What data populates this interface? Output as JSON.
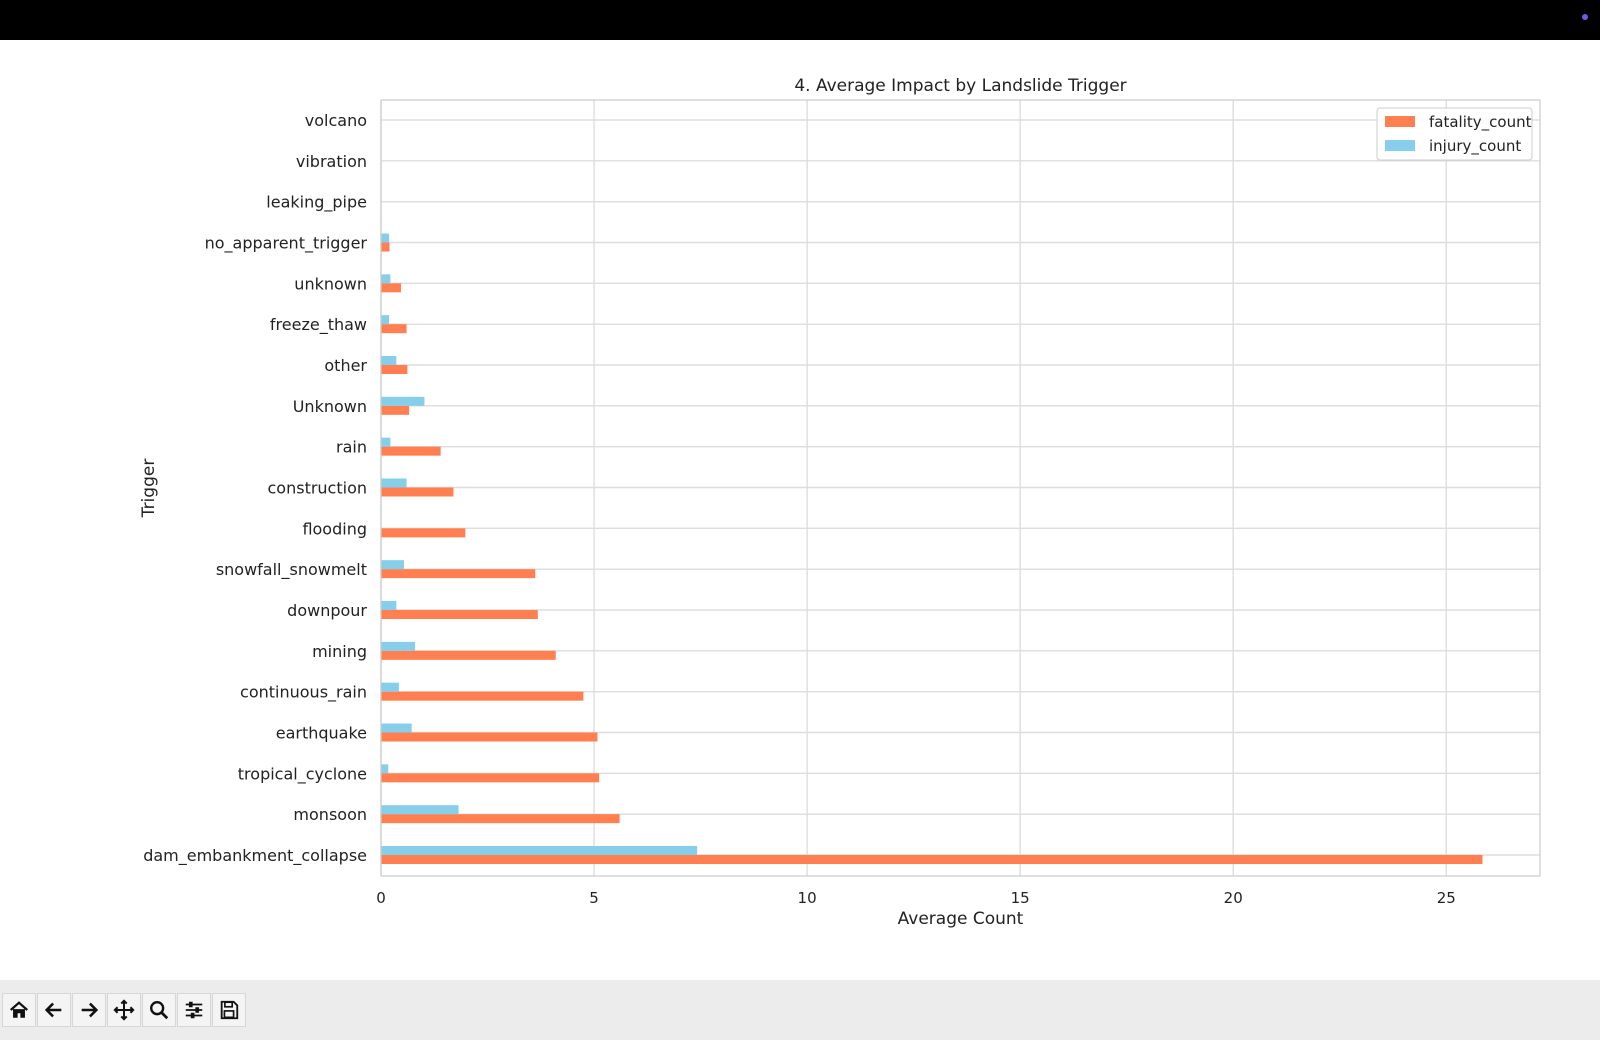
{
  "window": {
    "accent": "#6c5ce7"
  },
  "chart_data": {
    "type": "bar",
    "orientation": "horizontal",
    "title": "4. Average Impact by Landslide Trigger",
    "xlabel": "Average Count",
    "ylabel": "Trigger",
    "xlim": [
      0,
      27.2
    ],
    "xticks": [
      0,
      5,
      10,
      15,
      20,
      25
    ],
    "grid": true,
    "legend_position": "upper right",
    "categories": [
      "dam_embankment_collapse",
      "monsoon",
      "tropical_cyclone",
      "earthquake",
      "continuous_rain",
      "mining",
      "downpour",
      "snowfall_snowmelt",
      "flooding",
      "construction",
      "rain",
      "Unknown",
      "other",
      "freeze_thaw",
      "unknown",
      "no_apparent_trigger",
      "leaking_pipe",
      "vibration",
      "volcano"
    ],
    "series": [
      {
        "name": "fatality_count",
        "color": "#ff7f50",
        "values": [
          25.85,
          5.6,
          5.12,
          5.08,
          4.75,
          4.1,
          3.68,
          3.62,
          1.98,
          1.7,
          1.4,
          0.66,
          0.62,
          0.6,
          0.47,
          0.2,
          0.0,
          0.0,
          0.0
        ]
      },
      {
        "name": "injury_count",
        "color": "#87ceeb",
        "values": [
          7.42,
          1.82,
          0.17,
          0.72,
          0.42,
          0.8,
          0.36,
          0.54,
          0.0,
          0.6,
          0.22,
          1.02,
          0.36,
          0.19,
          0.22,
          0.19,
          0.0,
          0.0,
          0.0
        ]
      }
    ]
  },
  "toolbar": {
    "buttons": [
      "home-icon",
      "back-arrow-icon",
      "forward-arrow-icon",
      "pan-icon",
      "zoom-icon",
      "configure-subplots-icon",
      "save-icon"
    ]
  }
}
